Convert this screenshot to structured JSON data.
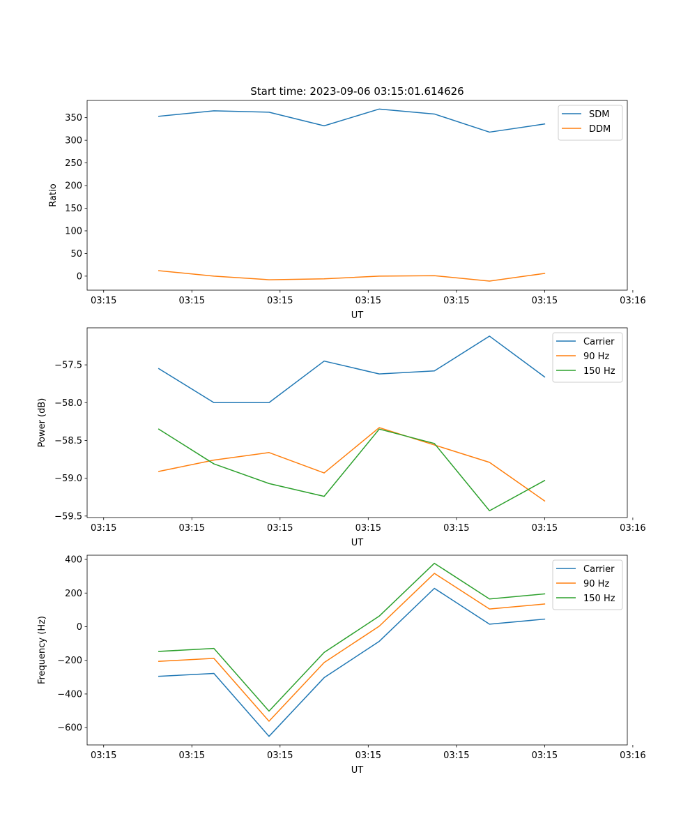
{
  "chart_data": [
    {
      "type": "line",
      "title": "Start time: 2023-09-06 03:15:01.614626",
      "xlabel": "UT",
      "ylabel": "Ratio",
      "x": [
        0.5,
        1.0,
        1.5,
        2.0,
        2.5,
        3.0,
        3.5,
        4.0
      ],
      "xlim": [
        -0.15,
        4.75
      ],
      "xticks": [
        0,
        0.8,
        1.6,
        2.4,
        3.2,
        4.0,
        4.8
      ],
      "xtick_labels": [
        "03:15",
        "03:15",
        "03:15",
        "03:15",
        "03:15",
        "03:15",
        "03:16"
      ],
      "ylim": [
        -31,
        388
      ],
      "yticks": [
        0,
        50,
        100,
        150,
        200,
        250,
        300,
        350
      ],
      "ytick_labels": [
        "0",
        "50",
        "100",
        "150",
        "200",
        "250",
        "300",
        "350"
      ],
      "legend": "top-right",
      "series": [
        {
          "name": "SDM",
          "color": "#1f77b4",
          "values": [
            353,
            365,
            362,
            332,
            369,
            358,
            318,
            336
          ]
        },
        {
          "name": "DDM",
          "color": "#ff7f0e",
          "values": [
            12,
            0,
            -8,
            -6,
            0,
            1,
            -11,
            6
          ]
        }
      ]
    },
    {
      "type": "line",
      "title": "",
      "xlabel": "UT",
      "ylabel": "Power (dB)",
      "x": [
        0.5,
        1.0,
        1.5,
        2.0,
        2.5,
        3.0,
        3.5,
        4.0
      ],
      "xlim": [
        -0.15,
        4.75
      ],
      "xticks": [
        0,
        0.8,
        1.6,
        2.4,
        3.2,
        4.0,
        4.8
      ],
      "xtick_labels": [
        "03:15",
        "03:15",
        "03:15",
        "03:15",
        "03:15",
        "03:15",
        "03:16"
      ],
      "ylim": [
        -59.52,
        -57.01
      ],
      "yticks": [
        -59.5,
        -59.0,
        -58.5,
        -58.0,
        -57.5
      ],
      "ytick_labels": [
        "−59.5",
        "−59.0",
        "−58.5",
        "−58.0",
        "−57.5"
      ],
      "legend": "top-right",
      "series": [
        {
          "name": "Carrier",
          "color": "#1f77b4",
          "values": [
            -57.55,
            -58.0,
            -58.0,
            -57.45,
            -57.62,
            -57.58,
            -57.12,
            -57.66
          ]
        },
        {
          "name": "90 Hz",
          "color": "#ff7f0e",
          "values": [
            -58.91,
            -58.76,
            -58.66,
            -58.93,
            -58.33,
            -58.56,
            -58.79,
            -59.3
          ]
        },
        {
          "name": "150 Hz",
          "color": "#2ca02c",
          "values": [
            -58.35,
            -58.81,
            -59.07,
            -59.24,
            -58.35,
            -58.54,
            -59.43,
            -59.03
          ]
        }
      ]
    },
    {
      "type": "line",
      "title": "",
      "xlabel": "UT",
      "ylabel": "Frequency (Hz)",
      "x": [
        0.5,
        1.0,
        1.5,
        2.0,
        2.5,
        3.0,
        3.5,
        4.0
      ],
      "xlim": [
        -0.15,
        4.75
      ],
      "xticks": [
        0,
        0.8,
        1.6,
        2.4,
        3.2,
        4.0,
        4.8
      ],
      "xtick_labels": [
        "03:15",
        "03:15",
        "03:15",
        "03:15",
        "03:15",
        "03:15",
        "03:16"
      ],
      "ylim": [
        -703,
        425
      ],
      "yticks": [
        -600,
        -400,
        -200,
        0,
        200,
        400
      ],
      "ytick_labels": [
        "−600",
        "−400",
        "−200",
        "0",
        "200",
        "400"
      ],
      "legend": "top-right",
      "series": [
        {
          "name": "Carrier",
          "color": "#1f77b4",
          "values": [
            -295,
            -278,
            -652,
            -303,
            -87,
            228,
            15,
            45
          ]
        },
        {
          "name": "90 Hz",
          "color": "#ff7f0e",
          "values": [
            -206,
            -188,
            -562,
            -213,
            3,
            317,
            105,
            135
          ]
        },
        {
          "name": "150 Hz",
          "color": "#2ca02c",
          "values": [
            -147,
            -129,
            -502,
            -153,
            63,
            377,
            165,
            195
          ]
        }
      ]
    }
  ]
}
